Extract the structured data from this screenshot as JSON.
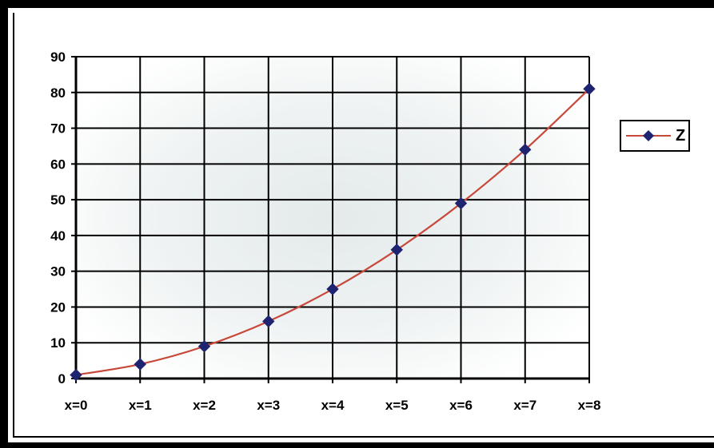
{
  "colors": {
    "line": "#c8483a",
    "marker": "#1f2470",
    "grid": "#000000",
    "plot_bg_center": "#e7ecec",
    "plot_bg_edge": "#ffffff"
  },
  "chart_data": {
    "type": "line",
    "categories": [
      "x=0",
      "x=1",
      "x=2",
      "x=3",
      "x=4",
      "x=5",
      "x=6",
      "x=7",
      "x=8"
    ],
    "series": [
      {
        "name": "Z",
        "values": [
          1,
          4,
          9,
          16,
          25,
          36,
          49,
          64,
          81
        ],
        "marker": "diamond-icon"
      }
    ],
    "yticks": [
      0,
      10,
      20,
      30,
      40,
      50,
      60,
      70,
      80,
      90
    ],
    "ylim": [
      0,
      90
    ],
    "grid": true,
    "legend": "right"
  }
}
